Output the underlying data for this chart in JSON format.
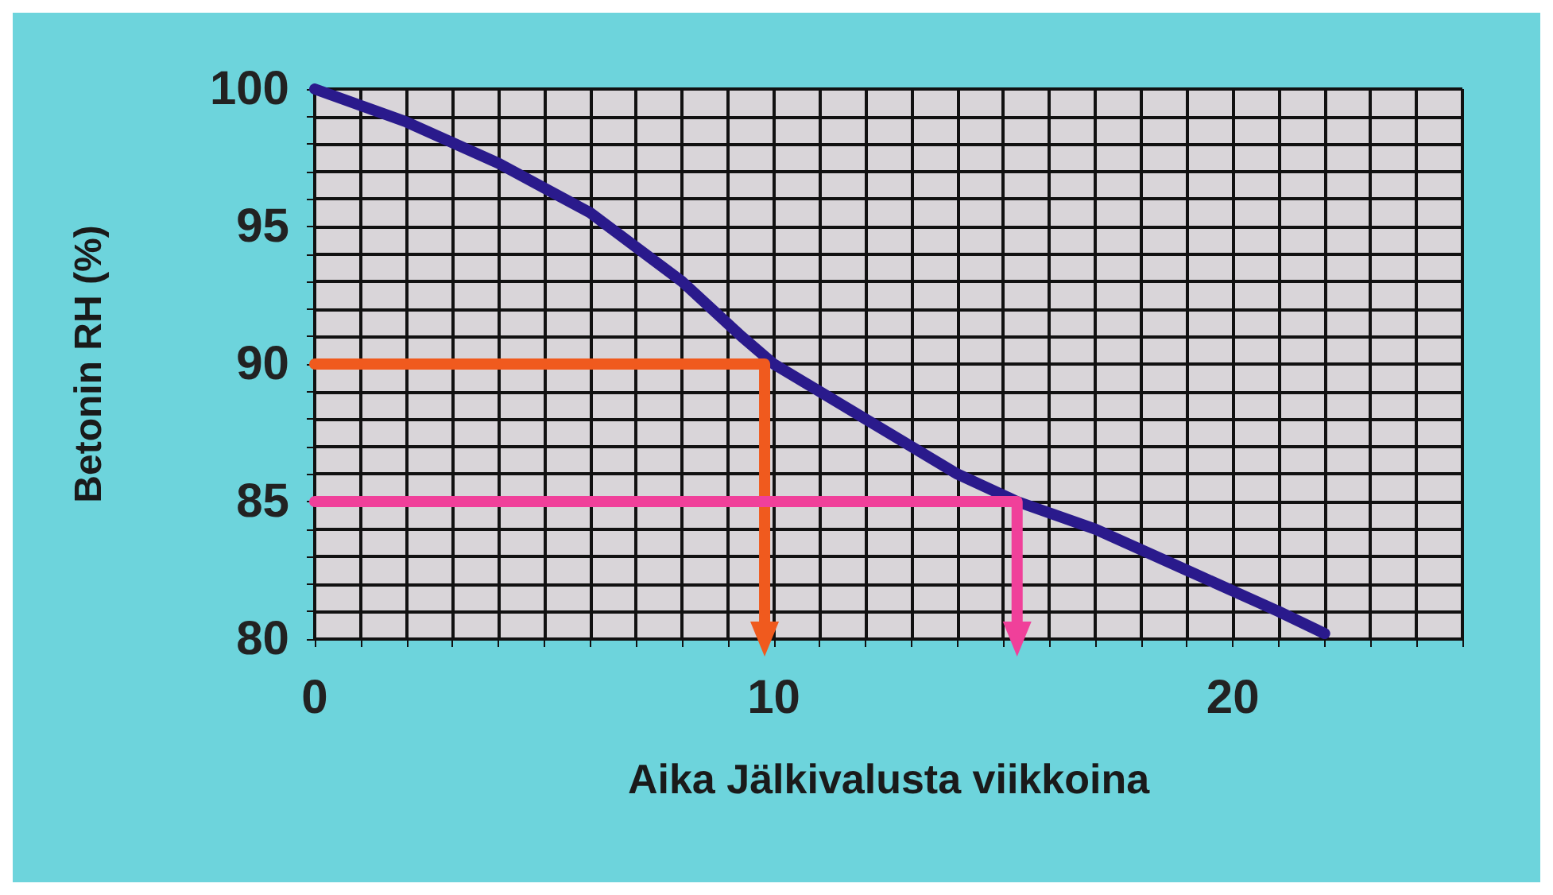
{
  "chart_data": {
    "type": "line",
    "xlabel": "Aika Jälkivalusta viikkoina",
    "ylabel": "Betonin RH (%)",
    "xlim": [
      0,
      25
    ],
    "ylim": [
      80,
      100
    ],
    "xticks": [
      0,
      {
        "value": 1,
        "label": null
      },
      {
        "value": 2,
        "label": null
      },
      {
        "value": 3,
        "label": null
      },
      {
        "value": 4,
        "label": null
      },
      {
        "value": 5,
        "label": null
      },
      {
        "value": 6,
        "label": null
      },
      {
        "value": 7,
        "label": null
      },
      {
        "value": 8,
        "label": null
      },
      {
        "value": 9,
        "label": null
      },
      10,
      {
        "value": 11,
        "label": null
      },
      {
        "value": 12,
        "label": null
      },
      {
        "value": 13,
        "label": null
      },
      {
        "value": 14,
        "label": null
      },
      {
        "value": 15,
        "label": null
      },
      {
        "value": 16,
        "label": null
      },
      {
        "value": 17,
        "label": null
      },
      {
        "value": 18,
        "label": null
      },
      {
        "value": 19,
        "label": null
      },
      20,
      {
        "value": 21,
        "label": null
      },
      {
        "value": 22,
        "label": null
      },
      {
        "value": 23,
        "label": null
      },
      {
        "value": 24,
        "label": null
      },
      {
        "value": 25,
        "label": null
      }
    ],
    "yticks": [
      80,
      {
        "value": 81,
        "label": null
      },
      {
        "value": 82,
        "label": null
      },
      {
        "value": 83,
        "label": null
      },
      {
        "value": 84,
        "label": null
      },
      85,
      {
        "value": 86,
        "label": null
      },
      {
        "value": 87,
        "label": null
      },
      {
        "value": 88,
        "label": null
      },
      {
        "value": 89,
        "label": null
      },
      90,
      {
        "value": 91,
        "label": null
      },
      {
        "value": 92,
        "label": null
      },
      {
        "value": 93,
        "label": null
      },
      {
        "value": 94,
        "label": null
      },
      95,
      {
        "value": 96,
        "label": null
      },
      {
        "value": 97,
        "label": null
      },
      {
        "value": 98,
        "label": null
      },
      {
        "value": 99,
        "label": null
      },
      100
    ],
    "grid": true,
    "line_style": "solid",
    "series": [
      {
        "color": "#2a1a8c",
        "x": [
          0,
          2,
          4,
          6,
          8,
          9.3,
          10,
          12,
          14,
          15.3,
          17,
          19,
          21,
          22
        ],
        "values": [
          100,
          98.8,
          97.3,
          95.5,
          93,
          91,
          90,
          88,
          86,
          85,
          84,
          82.5,
          81,
          80.2
        ]
      },
      {
        "color": "#f05a1e",
        "x": [
          0,
          9.8,
          9.8
        ],
        "values": [
          90,
          90,
          80
        ]
      },
      {
        "color": "#f0409a",
        "x": [
          0,
          15.3,
          15.3
        ],
        "values": [
          85,
          85,
          80
        ]
      }
    ]
  }
}
